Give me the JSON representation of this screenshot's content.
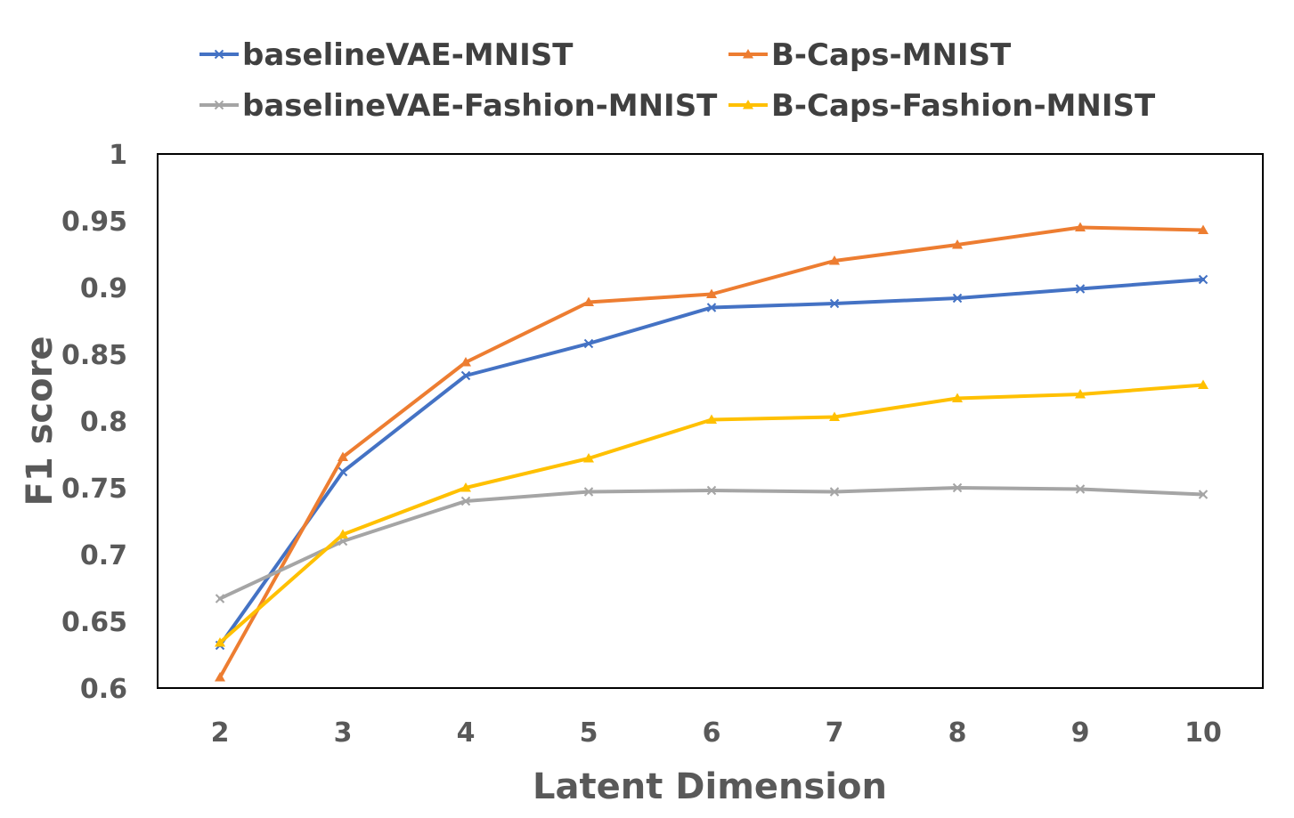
{
  "chart_data": {
    "type": "line",
    "title": "",
    "xlabel": "Latent Dimension",
    "ylabel": "F1 score",
    "x": [
      2,
      3,
      4,
      5,
      6,
      7,
      8,
      9,
      10
    ],
    "ylim": [
      0.6,
      1.0
    ],
    "yticks": [
      "0.6",
      "0.65",
      "0.7",
      "0.75",
      "0.8",
      "0.85",
      "0.9",
      "0.95",
      "1"
    ],
    "xticks": [
      "2",
      "3",
      "4",
      "5",
      "6",
      "7",
      "8",
      "9",
      "10"
    ],
    "grid": false,
    "legend_position": "top",
    "series": [
      {
        "name": "baselineVAE-MNIST",
        "color": "#4472C4",
        "marker": "x",
        "values": [
          0.632,
          0.762,
          0.834,
          0.858,
          0.885,
          0.888,
          0.892,
          0.899,
          0.906
        ]
      },
      {
        "name": "B-Caps-MNIST",
        "color": "#ED7D31",
        "marker": "triangle",
        "values": [
          0.608,
          0.773,
          0.844,
          0.889,
          0.895,
          0.92,
          0.932,
          0.945,
          0.943
        ]
      },
      {
        "name": "baselineVAE-Fashion-MNIST",
        "color": "#A5A5A5",
        "marker": "x",
        "values": [
          0.667,
          0.71,
          0.74,
          0.747,
          0.748,
          0.747,
          0.75,
          0.749,
          0.745
        ]
      },
      {
        "name": "B-Caps-Fashion-MNIST",
        "color": "#FFC000",
        "marker": "triangle",
        "values": [
          0.634,
          0.715,
          0.75,
          0.772,
          0.801,
          0.803,
          0.817,
          0.82,
          0.827
        ]
      }
    ]
  }
}
